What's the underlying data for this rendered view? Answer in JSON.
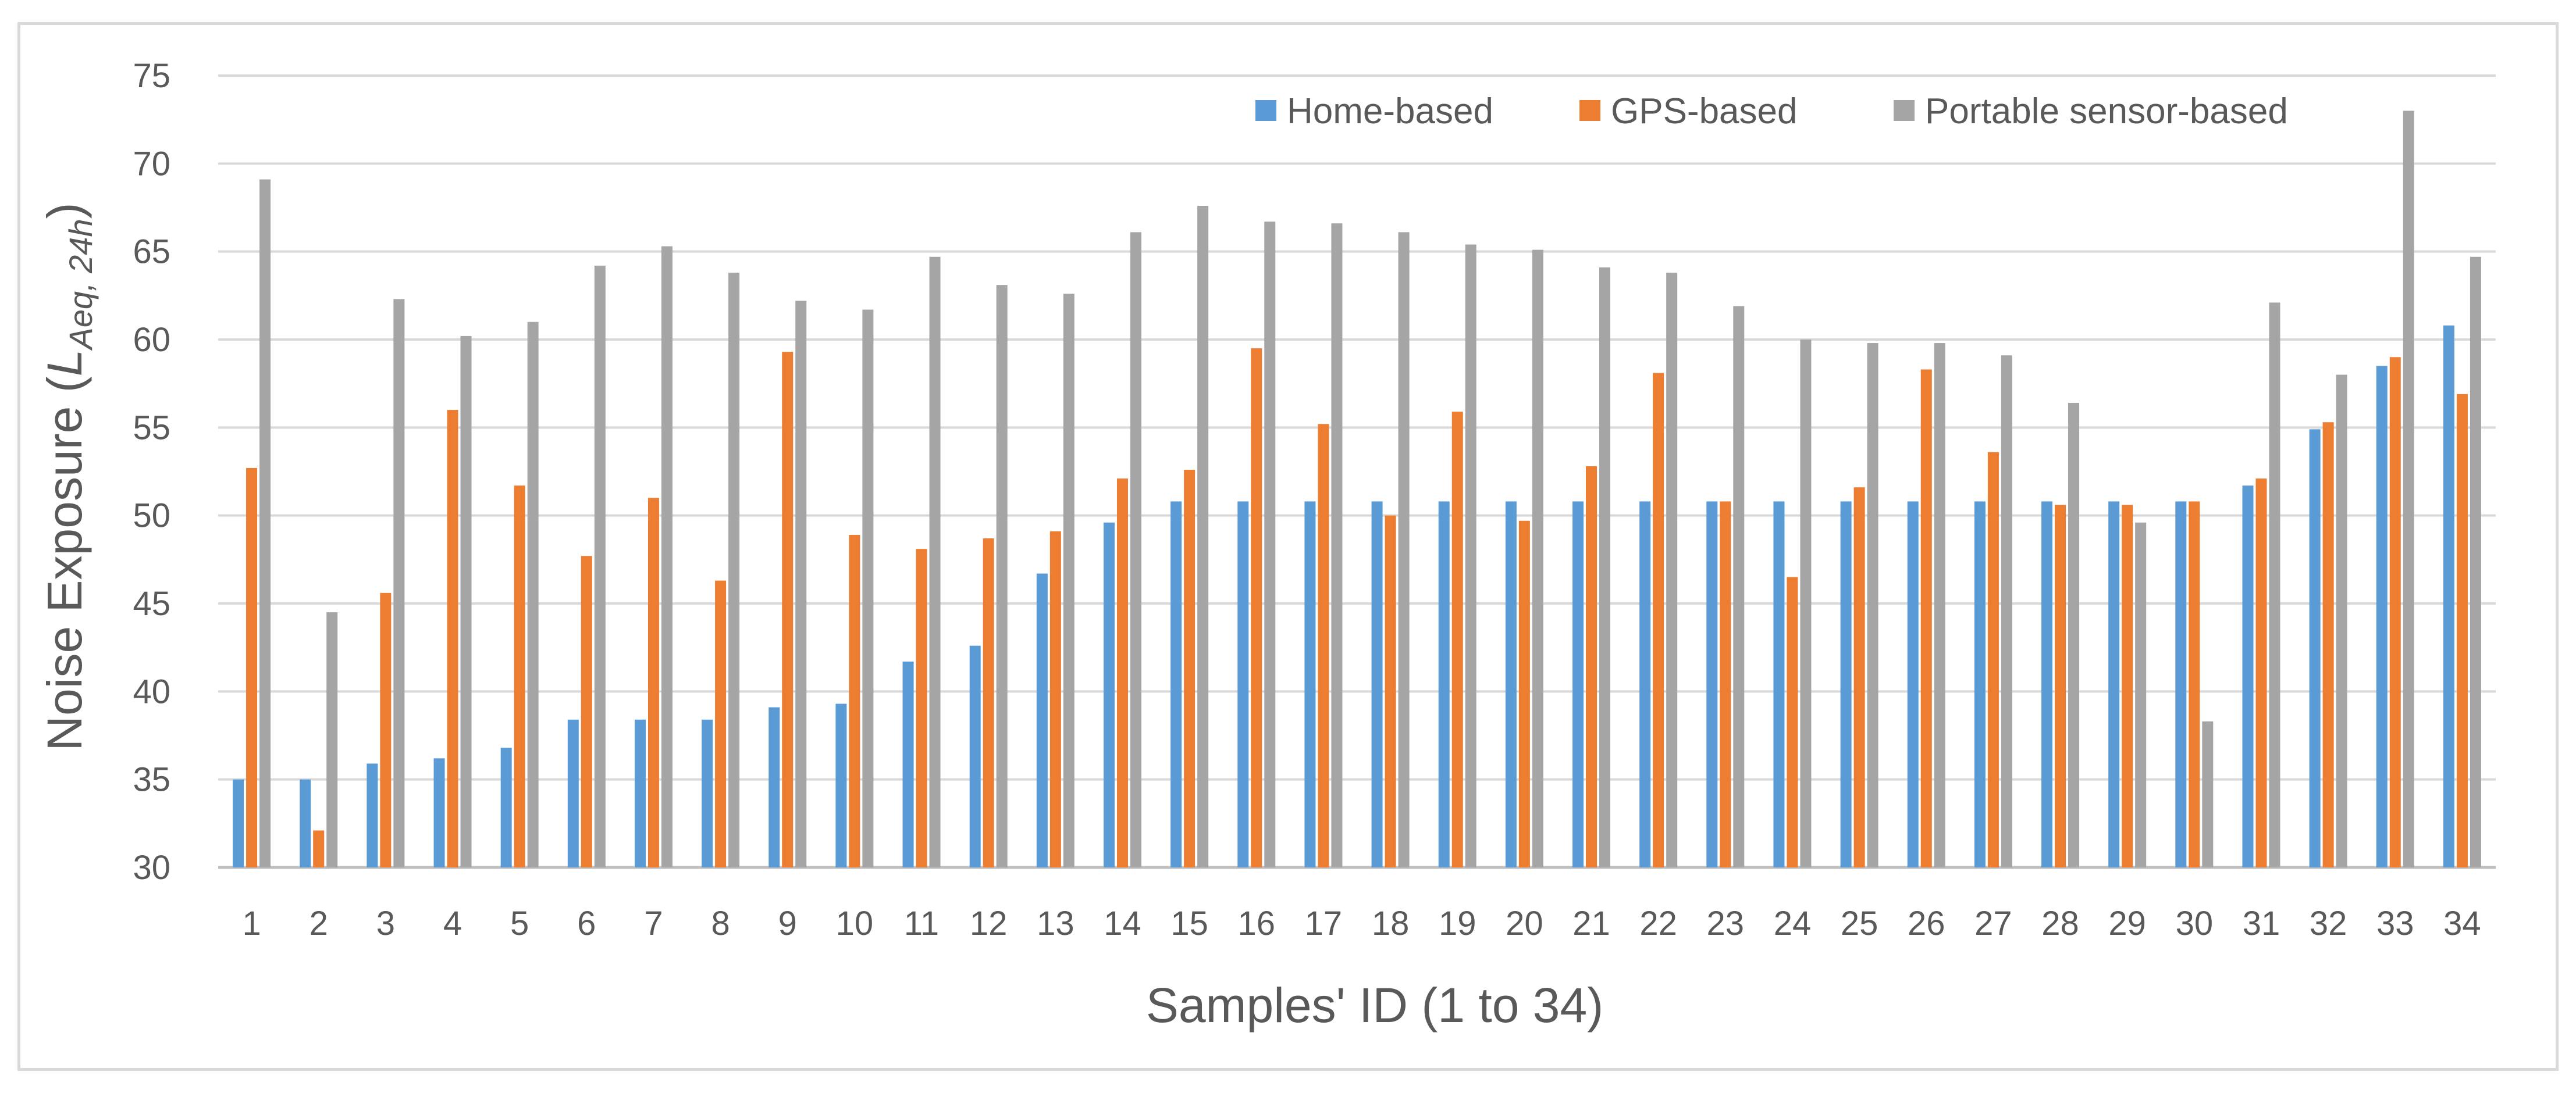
{
  "chart_data": {
    "type": "bar",
    "title": "",
    "xlabel": "Samples' ID (1 to 34)",
    "ylabel": {
      "prefix": "Noise Exposure (",
      "var": "L",
      "subscript": "Aeq, 24h",
      "suffix": ")"
    },
    "ylim": [
      30,
      75
    ],
    "yticks": [
      30,
      35,
      40,
      45,
      50,
      55,
      60,
      65,
      70,
      75
    ],
    "grid": true,
    "legend_position": "top-right",
    "categories": [
      "1",
      "2",
      "3",
      "4",
      "5",
      "6",
      "7",
      "8",
      "9",
      "10",
      "11",
      "12",
      "13",
      "14",
      "15",
      "16",
      "17",
      "18",
      "19",
      "20",
      "21",
      "22",
      "23",
      "24",
      "25",
      "26",
      "27",
      "28",
      "29",
      "30",
      "31",
      "32",
      "33",
      "34"
    ],
    "series": [
      {
        "name": "Home-based",
        "color": "#5b9bd5",
        "values": [
          35.0,
          35.0,
          35.9,
          36.2,
          36.8,
          38.4,
          38.4,
          38.4,
          39.1,
          39.3,
          41.7,
          42.6,
          46.7,
          49.6,
          50.8,
          50.8,
          50.8,
          50.8,
          50.8,
          50.8,
          50.8,
          50.8,
          50.8,
          50.8,
          50.8,
          50.8,
          50.8,
          50.8,
          50.8,
          50.8,
          51.7,
          54.9,
          58.5,
          60.8
        ]
      },
      {
        "name": "GPS-based",
        "color": "#ed7d31",
        "values": [
          52.7,
          32.1,
          45.6,
          56.0,
          51.7,
          47.7,
          51.0,
          46.3,
          59.3,
          48.9,
          48.1,
          48.7,
          49.1,
          52.1,
          52.6,
          59.5,
          55.2,
          50.0,
          55.9,
          49.7,
          52.8,
          58.1,
          50.8,
          46.5,
          51.6,
          58.3,
          53.6,
          50.6,
          50.6,
          50.8,
          52.1,
          55.3,
          59.0,
          56.9
        ]
      },
      {
        "name": "Portable sensor-based",
        "color": "#a5a5a5",
        "values": [
          69.1,
          44.5,
          62.3,
          60.2,
          61.0,
          64.2,
          65.3,
          63.8,
          62.2,
          61.7,
          64.7,
          63.1,
          62.6,
          66.1,
          67.6,
          66.7,
          66.6,
          66.1,
          65.4,
          65.1,
          64.1,
          63.8,
          61.9,
          60.0,
          59.8,
          59.8,
          59.1,
          56.4,
          49.6,
          38.3,
          62.1,
          58.0,
          73.0,
          64.7
        ]
      }
    ]
  }
}
